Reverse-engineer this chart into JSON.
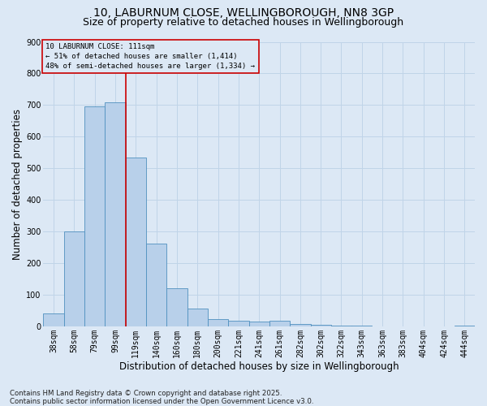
{
  "title_line1": "10, LABURNUM CLOSE, WELLINGBOROUGH, NN8 3GP",
  "title_line2": "Size of property relative to detached houses in Wellingborough",
  "xlabel": "Distribution of detached houses by size in Wellingborough",
  "ylabel": "Number of detached properties",
  "categories": [
    "38sqm",
    "58sqm",
    "79sqm",
    "99sqm",
    "119sqm",
    "140sqm",
    "160sqm",
    "180sqm",
    "200sqm",
    "221sqm",
    "241sqm",
    "261sqm",
    "282sqm",
    "302sqm",
    "322sqm",
    "343sqm",
    "363sqm",
    "383sqm",
    "404sqm",
    "424sqm",
    "444sqm"
  ],
  "values": [
    43,
    300,
    695,
    710,
    535,
    263,
    122,
    58,
    25,
    18,
    15,
    18,
    8,
    5,
    4,
    3,
    2,
    1,
    1,
    0,
    4
  ],
  "bar_color": "#b8d0ea",
  "bar_edge_color": "#5090bf",
  "grid_color": "#c0d4e8",
  "background_color": "#dce8f5",
  "vline_x": 3.5,
  "vline_color": "#cc0000",
  "annotation_line1": "10 LABURNUM CLOSE: 111sqm",
  "annotation_line2": "← 51% of detached houses are smaller (1,414)",
  "annotation_line3": "48% of semi-detached houses are larger (1,334) →",
  "annotation_box_edgecolor": "#cc0000",
  "ylim_max": 900,
  "yticks": [
    0,
    100,
    200,
    300,
    400,
    500,
    600,
    700,
    800,
    900
  ],
  "footnote": "Contains HM Land Registry data © Crown copyright and database right 2025.\nContains public sector information licensed under the Open Government Licence v3.0.",
  "title_fontsize": 10,
  "subtitle_fontsize": 9,
  "xlabel_fontsize": 8.5,
  "ylabel_fontsize": 8.5,
  "tick_fontsize": 7,
  "annotation_fontsize": 6.5,
  "footnote_fontsize": 6.2
}
